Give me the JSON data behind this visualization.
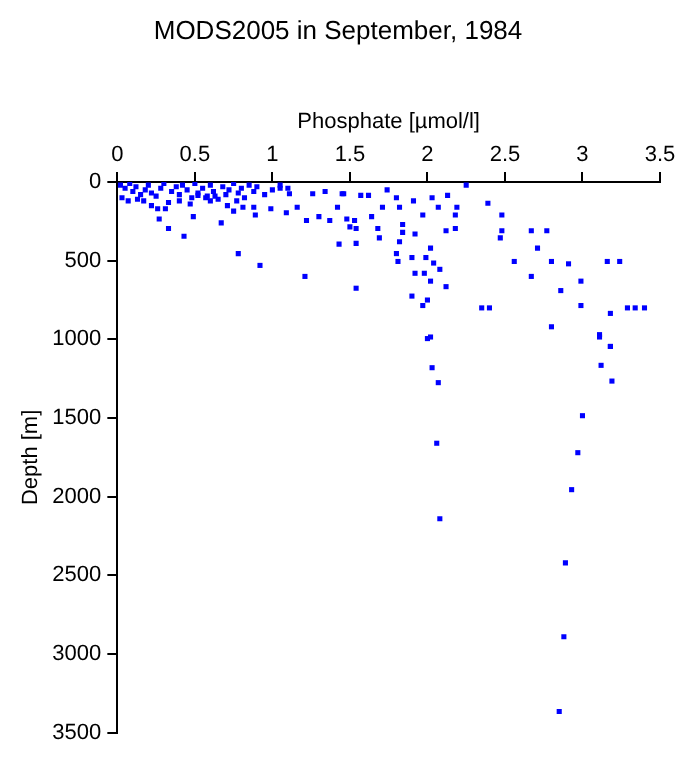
{
  "chart_data": {
    "type": "scatter",
    "title": "MODS2005 in September, 1984",
    "xlabel": "Phosphate [µmol/l]",
    "ylabel": "Depth [m]",
    "xlim": [
      0,
      3.5
    ],
    "xticks": [
      0,
      0.5,
      1,
      1.5,
      2,
      2.5,
      3,
      3.5
    ],
    "ylim": [
      3500,
      0
    ],
    "yticks": [
      0,
      500,
      1000,
      1500,
      2000,
      2500,
      3000,
      3500
    ],
    "grid": false,
    "legend": false,
    "marker": "square",
    "series": [
      {
        "color": "#0000ff",
        "x": [
          0.02,
          0.05,
          0.08,
          0.1,
          0.12,
          0.15,
          0.18,
          0.2,
          0.25,
          0.28,
          0.3,
          0.35,
          0.38,
          0.4,
          0.42,
          0.45,
          0.48,
          0.5,
          0.52,
          0.55,
          0.58,
          0.6,
          0.62,
          0.65,
          0.68,
          0.7,
          0.72,
          0.75,
          0.78,
          0.8,
          0.82,
          0.85,
          0.88,
          0.9,
          0.95,
          1.0,
          1.05,
          1.1,
          0.03,
          0.07,
          0.13,
          0.22,
          0.33,
          0.47,
          0.57,
          0.63,
          0.77,
          0.43,
          0.33,
          0.27,
          0.31,
          0.26,
          0.49,
          0.67,
          0.78,
          0.92,
          1.21,
          0.89,
          0.88,
          0.99,
          1.09,
          1.16,
          1.22,
          1.3,
          1.37,
          1.42,
          1.45,
          1.34,
          1.26,
          1.11,
          1.05,
          0.71,
          0.6,
          0.52,
          0.4,
          0.17,
          0.22,
          0.75,
          0.81,
          2.25,
          2.39,
          2.48,
          2.48,
          2.47,
          2.67,
          2.77,
          2.71,
          2.56,
          2.8,
          2.91,
          3.16,
          3.24,
          2.67,
          2.99,
          2.86,
          2.35,
          2.4,
          3.18,
          3.29,
          3.34,
          3.4,
          2.99,
          2.8,
          3.11,
          3.18,
          2.02,
          2.12,
          1.97,
          2.0,
          1.9,
          2.02,
          1.92,
          2.08,
          1.98,
          2.04,
          1.99,
          2.02,
          1.9,
          1.81,
          1.8,
          1.82,
          1.92,
          1.84,
          1.97,
          2.12,
          2.18,
          2.18,
          1.84,
          1.68,
          1.69,
          1.54,
          1.54,
          1.54,
          1.5,
          1.43,
          1.48,
          1.53,
          1.64,
          1.71,
          1.82,
          1.91,
          2.07,
          2.19,
          2.13,
          2.03,
          1.8,
          1.74,
          1.57,
          1.62,
          1.46,
          2.0,
          2.03,
          2.07,
          2.06,
          2.08,
          3.11,
          3.18,
          3.12,
          3.19,
          3.0,
          2.97,
          2.93,
          2.89,
          2.88,
          2.85
        ],
        "values": [
          20,
          40,
          10,
          60,
          30,
          80,
          50,
          20,
          90,
          40,
          10,
          60,
          30,
          80,
          20,
          50,
          100,
          10,
          70,
          40,
          90,
          20,
          60,
          110,
          30,
          80,
          50,
          10,
          70,
          40,
          100,
          20,
          60,
          30,
          80,
          50,
          20,
          40,
          100,
          120,
          110,
          70,
          130,
          140,
          100,
          90,
          120,
          345,
          295,
          235,
          170,
          170,
          220,
          260,
          455,
          530,
          600,
          210,
          160,
          170,
          195,
          160,
          245,
          220,
          245,
          160,
          75,
          60,
          75,
          75,
          40,
          150,
          120,
          85,
          120,
          120,
          150,
          185,
          160,
          20,
          135,
          210,
          310,
          355,
          310,
          310,
          420,
          505,
          505,
          520,
          505,
          505,
          600,
          630,
          690,
          800,
          800,
          835,
          800,
          800,
          800,
          785,
          920,
          970,
          1045,
          985,
          665,
          785,
          750,
          725,
          630,
          580,
          555,
          580,
          515,
          480,
          420,
          480,
          505,
          455,
          380,
          330,
          320,
          210,
          310,
          295,
          210,
          270,
          295,
          355,
          675,
          390,
          295,
          285,
          395,
          235,
          245,
          220,
          160,
          160,
          120,
          160,
          160,
          85,
          100,
          100,
          50,
          85,
          85,
          75,
          995,
          1180,
          1275,
          1660,
          2140,
          985,
          1045,
          1165,
          1265,
          1485,
          1720,
          1955,
          2420,
          2890,
          3365
        ]
      }
    ]
  }
}
